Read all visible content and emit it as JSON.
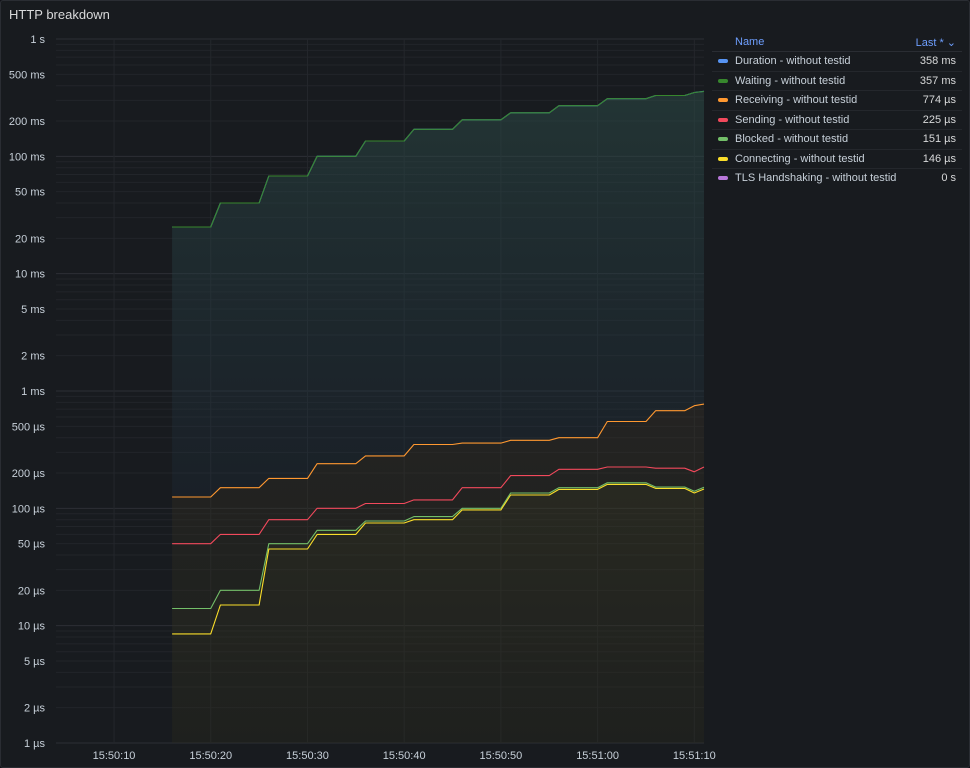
{
  "panel": {
    "title": "HTTP breakdown"
  },
  "legend": {
    "col_name": "Name",
    "col_last": "Last * ⌄",
    "items": [
      {
        "name": "Duration - without testid",
        "value": "358 ms",
        "color": "#5794f2"
      },
      {
        "name": "Waiting - without testid",
        "value": "357 ms",
        "color": "#37872d"
      },
      {
        "name": "Receiving - without testid",
        "value": "774 µs",
        "color": "#ff9830"
      },
      {
        "name": "Sending - without testid",
        "value": "225 µs",
        "color": "#f2495c"
      },
      {
        "name": "Blocked - without testid",
        "value": "151 µs",
        "color": "#73bf69"
      },
      {
        "name": "Connecting - without testid",
        "value": "146 µs",
        "color": "#fade2a"
      },
      {
        "name": "TLS Handshaking - without testid",
        "value": "0 s",
        "color": "#b877d9"
      }
    ]
  },
  "chart_data": {
    "type": "line",
    "title": "HTTP breakdown",
    "y_scale": "log",
    "ylim_seconds": [
      1e-06,
      1
    ],
    "y_ticks": [
      {
        "v": 1,
        "label": "1 s"
      },
      {
        "v": 0.5,
        "label": "500 ms"
      },
      {
        "v": 0.2,
        "label": "200 ms"
      },
      {
        "v": 0.1,
        "label": "100 ms"
      },
      {
        "v": 0.05,
        "label": "50 ms"
      },
      {
        "v": 0.02,
        "label": "20 ms"
      },
      {
        "v": 0.01,
        "label": "10 ms"
      },
      {
        "v": 0.005,
        "label": "5 ms"
      },
      {
        "v": 0.002,
        "label": "2 ms"
      },
      {
        "v": 0.001,
        "label": "1 ms"
      },
      {
        "v": 0.0005,
        "label": "500 µs"
      },
      {
        "v": 0.0002,
        "label": "200 µs"
      },
      {
        "v": 0.0001,
        "label": "100 µs"
      },
      {
        "v": 5e-05,
        "label": "50 µs"
      },
      {
        "v": 2e-05,
        "label": "20 µs"
      },
      {
        "v": 1e-05,
        "label": "10 µs"
      },
      {
        "v": 5e-06,
        "label": "5 µs"
      },
      {
        "v": 2e-06,
        "label": "2 µs"
      },
      {
        "v": 1e-06,
        "label": "1 µs"
      }
    ],
    "x_ticks": [
      "15:50:10",
      "15:50:20",
      "15:50:30",
      "15:50:40",
      "15:50:50",
      "15:51:00",
      "15:51:10"
    ],
    "x_range": [
      "15:50:04",
      "15:51:11"
    ],
    "x_times": [
      "15:50:16",
      "15:50:20",
      "15:50:21",
      "15:50:25",
      "15:50:26",
      "15:50:30",
      "15:50:31",
      "15:50:35",
      "15:50:36",
      "15:50:40",
      "15:50:41",
      "15:50:45",
      "15:50:46",
      "15:50:50",
      "15:50:51",
      "15:50:55",
      "15:50:56",
      "15:51:00",
      "15:51:01",
      "15:51:05",
      "15:51:06",
      "15:51:09",
      "15:51:10",
      "15:51:11"
    ],
    "series": [
      {
        "name": "Duration - without testid",
        "color": "#5794f2",
        "values_seconds": [
          0.025,
          0.025,
          0.04,
          0.04,
          0.068,
          0.068,
          0.1,
          0.1,
          0.135,
          0.135,
          0.17,
          0.17,
          0.205,
          0.205,
          0.235,
          0.235,
          0.27,
          0.27,
          0.31,
          0.31,
          0.33,
          0.33,
          0.35,
          0.358
        ]
      },
      {
        "name": "Waiting - without testid",
        "color": "#37872d",
        "values_seconds": [
          0.025,
          0.025,
          0.04,
          0.04,
          0.068,
          0.068,
          0.1,
          0.1,
          0.135,
          0.135,
          0.17,
          0.17,
          0.205,
          0.205,
          0.235,
          0.235,
          0.27,
          0.27,
          0.31,
          0.31,
          0.33,
          0.33,
          0.35,
          0.357
        ]
      },
      {
        "name": "Receiving - without testid",
        "color": "#ff9830",
        "values_seconds": [
          0.000125,
          0.000125,
          0.00015,
          0.00015,
          0.00018,
          0.00018,
          0.00024,
          0.00024,
          0.00028,
          0.00028,
          0.00035,
          0.00035,
          0.00036,
          0.00036,
          0.00038,
          0.00038,
          0.0004,
          0.0004,
          0.00055,
          0.00055,
          0.00068,
          0.00068,
          0.00075,
          0.000774
        ]
      },
      {
        "name": "Sending - without testid",
        "color": "#f2495c",
        "values_seconds": [
          5e-05,
          5e-05,
          6e-05,
          6e-05,
          8e-05,
          8e-05,
          0.0001,
          0.0001,
          0.00011,
          0.00011,
          0.000118,
          0.000118,
          0.00015,
          0.00015,
          0.00019,
          0.00019,
          0.000215,
          0.000215,
          0.000225,
          0.000225,
          0.00022,
          0.00022,
          0.000205,
          0.000225
        ]
      },
      {
        "name": "Blocked - without testid",
        "color": "#73bf69",
        "values_seconds": [
          1.4e-05,
          1.4e-05,
          2e-05,
          2e-05,
          5e-05,
          5e-05,
          6.5e-05,
          6.5e-05,
          7.8e-05,
          7.8e-05,
          8.5e-05,
          8.5e-05,
          0.0001,
          0.0001,
          0.000135,
          0.000135,
          0.00015,
          0.00015,
          0.000165,
          0.000165,
          0.000152,
          0.000152,
          0.00014,
          0.000151
        ]
      },
      {
        "name": "Connecting - without testid",
        "color": "#fade2a",
        "values_seconds": [
          8.5e-06,
          8.5e-06,
          1.5e-05,
          1.5e-05,
          4.5e-05,
          4.5e-05,
          6e-05,
          6e-05,
          7.5e-05,
          7.5e-05,
          8e-05,
          8e-05,
          9.7e-05,
          9.7e-05,
          0.00013,
          0.00013,
          0.000145,
          0.000145,
          0.00016,
          0.00016,
          0.000148,
          0.000148,
          0.000135,
          0.000146
        ]
      },
      {
        "name": "TLS Handshaking - without testid",
        "color": "#b877d9",
        "values_seconds": [
          0,
          0,
          0,
          0,
          0,
          0,
          0,
          0,
          0,
          0,
          0,
          0,
          0,
          0,
          0,
          0,
          0,
          0,
          0,
          0,
          0,
          0,
          0,
          0
        ]
      }
    ]
  }
}
